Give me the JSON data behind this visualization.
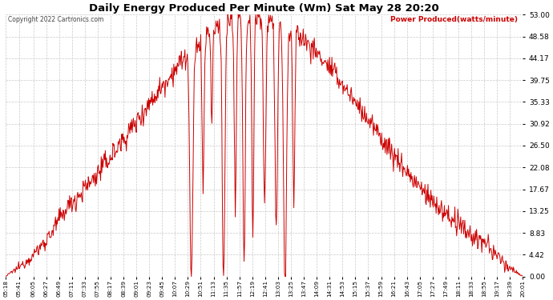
{
  "title": "Daily Energy Produced Per Minute (Wm) Sat May 28 20:20",
  "copyright": "Copyright 2022 Cartronics.com",
  "legend_label": "Power Produced(watts/minute)",
  "line_color": "#cc0000",
  "background_color": "#ffffff",
  "grid_color": "#bbbbbb",
  "yticks": [
    0.0,
    4.42,
    8.83,
    13.25,
    17.67,
    22.08,
    26.5,
    30.92,
    35.33,
    39.75,
    44.17,
    48.58,
    53.0
  ],
  "ymax": 53.0,
  "ymin": 0.0,
  "xtick_labels": [
    "05:18",
    "05:41",
    "06:05",
    "06:27",
    "06:49",
    "07:11",
    "07:33",
    "07:55",
    "08:17",
    "08:39",
    "09:01",
    "09:23",
    "09:45",
    "10:07",
    "10:29",
    "10:51",
    "11:13",
    "11:35",
    "11:57",
    "12:19",
    "12:41",
    "13:03",
    "13:25",
    "13:47",
    "14:09",
    "14:31",
    "14:53",
    "15:15",
    "15:37",
    "15:59",
    "16:21",
    "16:43",
    "17:05",
    "17:27",
    "17:49",
    "18:11",
    "18:33",
    "18:55",
    "19:17",
    "19:39",
    "20:01"
  ]
}
